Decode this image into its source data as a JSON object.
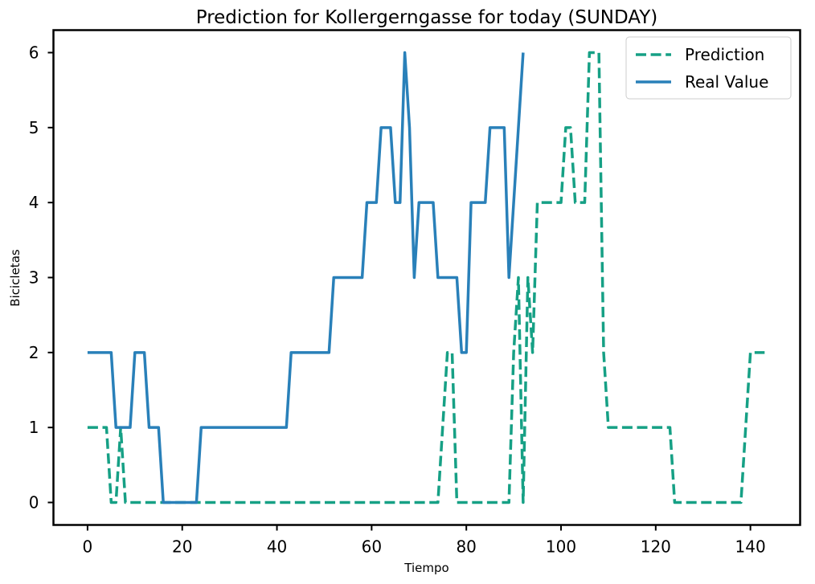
{
  "chart_data": {
    "type": "line",
    "title": "Prediction for Kollergerngasse for today (SUNDAY)",
    "xlabel": "Tiempo",
    "ylabel": "Bicicletas",
    "xlim": [
      -7.2,
      150.5
    ],
    "ylim": [
      -0.3,
      6.3
    ],
    "xticks": [
      0,
      20,
      40,
      60,
      80,
      100,
      120,
      140
    ],
    "yticks": [
      0,
      1,
      2,
      3,
      4,
      5,
      6
    ],
    "grid": false,
    "legend_position": "top-right",
    "series": [
      {
        "name": "Prediction",
        "style": "dashed",
        "color": "#16a085",
        "x": [
          0,
          1,
          2,
          3,
          4,
          5,
          6,
          7,
          8,
          9,
          10,
          11,
          12,
          13,
          14,
          15,
          16,
          17,
          18,
          19,
          20,
          21,
          22,
          23,
          24,
          25,
          26,
          27,
          28,
          29,
          30,
          31,
          32,
          33,
          34,
          35,
          36,
          37,
          38,
          39,
          40,
          41,
          42,
          43,
          44,
          45,
          46,
          47,
          48,
          49,
          50,
          51,
          52,
          53,
          54,
          55,
          56,
          57,
          58,
          59,
          60,
          61,
          62,
          63,
          64,
          65,
          66,
          67,
          68,
          69,
          70,
          71,
          72,
          73,
          74,
          75,
          76,
          77,
          78,
          79,
          80,
          81,
          82,
          83,
          84,
          85,
          86,
          87,
          88,
          89,
          90,
          91,
          92,
          93,
          94,
          95,
          96,
          97,
          98,
          99,
          100,
          101,
          102,
          103,
          104,
          105,
          106,
          107,
          108,
          109,
          110,
          111,
          112,
          113,
          114,
          115,
          116,
          117,
          118,
          119,
          120,
          121,
          122,
          123,
          124,
          125,
          126,
          127,
          128,
          129,
          130,
          131,
          132,
          133,
          134,
          135,
          136,
          137,
          138,
          139,
          140,
          141,
          142,
          143
        ],
        "y": [
          1,
          1,
          1,
          1,
          1,
          0,
          0,
          1,
          0,
          0,
          0,
          0,
          0,
          0,
          0,
          0,
          0,
          0,
          0,
          0,
          0,
          0,
          0,
          0,
          0,
          0,
          0,
          0,
          0,
          0,
          0,
          0,
          0,
          0,
          0,
          0,
          0,
          0,
          0,
          0,
          0,
          0,
          0,
          0,
          0,
          0,
          0,
          0,
          0,
          0,
          0,
          0,
          0,
          0,
          0,
          0,
          0,
          0,
          0,
          0,
          0,
          0,
          0,
          0,
          0,
          0,
          0,
          0,
          0,
          0,
          0,
          0,
          0,
          0,
          0,
          1,
          2,
          2,
          0,
          0,
          0,
          0,
          0,
          0,
          0,
          0,
          0,
          0,
          0,
          0,
          2,
          3,
          0,
          3,
          2,
          4,
          4,
          4,
          4,
          4,
          4,
          5,
          5,
          4,
          4,
          4,
          6,
          6,
          6,
          2,
          1,
          1,
          1,
          1,
          1,
          1,
          1,
          1,
          1,
          1,
          1,
          1,
          1,
          1,
          0,
          0,
          0,
          0,
          0,
          0,
          0,
          0,
          0,
          0,
          0,
          0,
          0,
          0,
          0,
          1,
          2,
          2,
          2,
          2
        ]
      },
      {
        "name": "Real Value",
        "style": "solid",
        "color": "#2980b9",
        "x": [
          0,
          1,
          2,
          3,
          4,
          5,
          6,
          7,
          8,
          9,
          10,
          11,
          12,
          13,
          14,
          15,
          16,
          17,
          18,
          19,
          20,
          21,
          22,
          23,
          24,
          25,
          26,
          27,
          28,
          29,
          30,
          31,
          32,
          33,
          34,
          35,
          36,
          37,
          38,
          39,
          40,
          41,
          42,
          43,
          44,
          45,
          46,
          47,
          48,
          49,
          50,
          51,
          52,
          53,
          54,
          55,
          56,
          57,
          58,
          59,
          60,
          61,
          62,
          63,
          64,
          65,
          66,
          67,
          68,
          69,
          70,
          71,
          72,
          73,
          74,
          75,
          76,
          77,
          78,
          79,
          80,
          81,
          82,
          83,
          84,
          85,
          86,
          87,
          88,
          89,
          90,
          91,
          92
        ],
        "y": [
          2,
          2,
          2,
          2,
          2,
          2,
          1,
          1,
          1,
          1,
          2,
          2,
          2,
          1,
          1,
          1,
          0,
          0,
          0,
          0,
          0,
          0,
          0,
          0,
          1,
          1,
          1,
          1,
          1,
          1,
          1,
          1,
          1,
          1,
          1,
          1,
          1,
          1,
          1,
          1,
          1,
          1,
          1,
          2,
          2,
          2,
          2,
          2,
          2,
          2,
          2,
          2,
          3,
          3,
          3,
          3,
          3,
          3,
          3,
          4,
          4,
          4,
          5,
          5,
          5,
          4,
          4,
          6,
          5,
          3,
          4,
          4,
          4,
          4,
          3,
          3,
          3,
          3,
          3,
          2,
          2,
          4,
          4,
          4,
          4,
          5,
          5,
          5,
          5,
          3,
          4,
          5,
          6
        ]
      }
    ]
  }
}
